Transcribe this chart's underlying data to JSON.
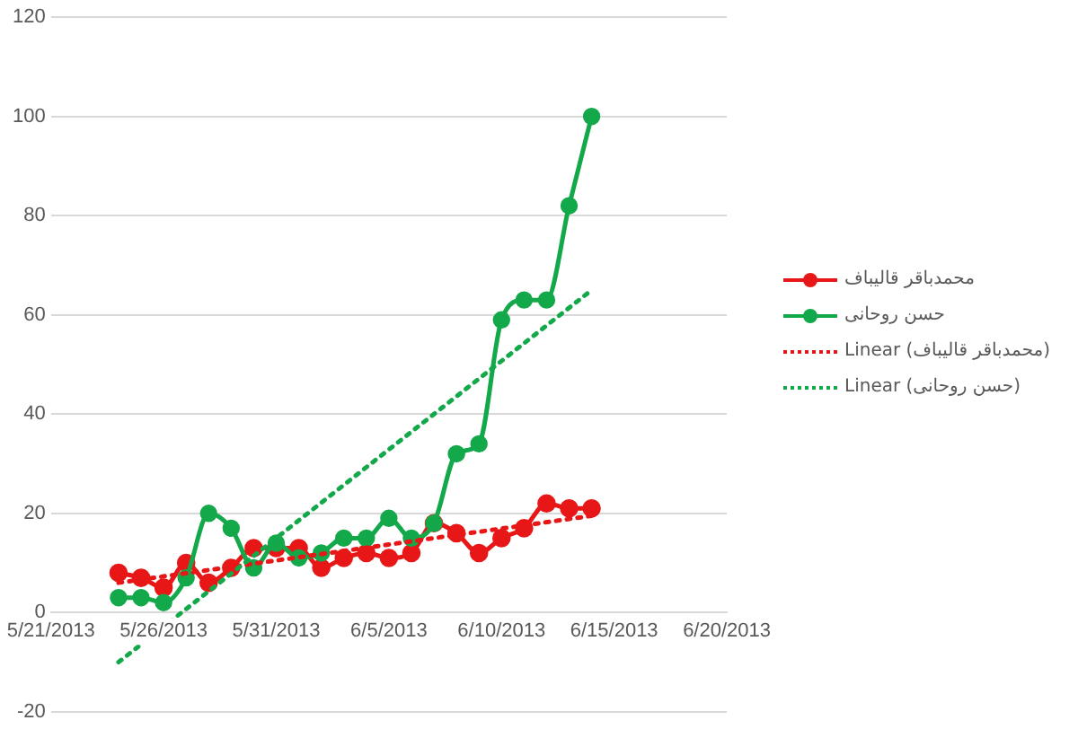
{
  "chart_data": {
    "type": "line",
    "x": [
      "2013-05-24",
      "2013-05-25",
      "2013-05-26",
      "2013-05-27",
      "2013-05-28",
      "2013-05-29",
      "2013-05-30",
      "2013-05-31",
      "2013-06-01",
      "2013-06-02",
      "2013-06-03",
      "2013-06-04",
      "2013-06-05",
      "2013-06-06",
      "2013-06-07",
      "2013-06-08",
      "2013-06-09",
      "2013-06-10",
      "2013-06-11",
      "2013-06-12",
      "2013-06-13",
      "2013-06-14"
    ],
    "series": [
      {
        "name": "محمدباقر قالیباف",
        "color": "#e81717",
        "marker": "circle",
        "line_style": "solid",
        "values": [
          8,
          7,
          5,
          10,
          6,
          9,
          13,
          13,
          13,
          9,
          11,
          12,
          11,
          12,
          18,
          16,
          12,
          15,
          17,
          22,
          21,
          21
        ]
      },
      {
        "name": "حسن روحانی",
        "color": "#13a84a",
        "marker": "circle",
        "line_style": "solid",
        "values": [
          3,
          3,
          2,
          7,
          20,
          17,
          9,
          14,
          11,
          12,
          15,
          15,
          19,
          15,
          18,
          32,
          34,
          59,
          63,
          63,
          82,
          100
        ]
      },
      {
        "name": "Linear (محمدباقر قالیباف)",
        "color": "#e81717",
        "marker": "none",
        "line_style": "dotted",
        "x": [
          "2013-05-24",
          "2013-06-14"
        ],
        "values": [
          6,
          19.5
        ]
      },
      {
        "name": "Linear (حسن روحانی)",
        "color": "#13a84a",
        "marker": "none",
        "line_style": "dotted",
        "x": [
          "2013-05-24",
          "2013-06-14"
        ],
        "values": [
          -10,
          65
        ]
      }
    ],
    "xlim": [
      "2013-05-21",
      "2013-06-20"
    ],
    "xticks": [
      {
        "value": "2013-05-21",
        "label": "5/21/2013"
      },
      {
        "value": "2013-05-26",
        "label": "5/26/2013"
      },
      {
        "value": "2013-05-31",
        "label": "5/31/2013"
      },
      {
        "value": "2013-06-05",
        "label": "6/5/2013"
      },
      {
        "value": "2013-06-10",
        "label": "6/10/2013"
      },
      {
        "value": "2013-06-15",
        "label": "6/15/2013"
      },
      {
        "value": "2013-06-20",
        "label": "6/20/2013"
      }
    ],
    "ylim": [
      -20,
      120
    ],
    "yticks": [
      -20,
      0,
      20,
      40,
      60,
      80,
      100,
      120
    ],
    "grid": "y",
    "legend": "right"
  }
}
